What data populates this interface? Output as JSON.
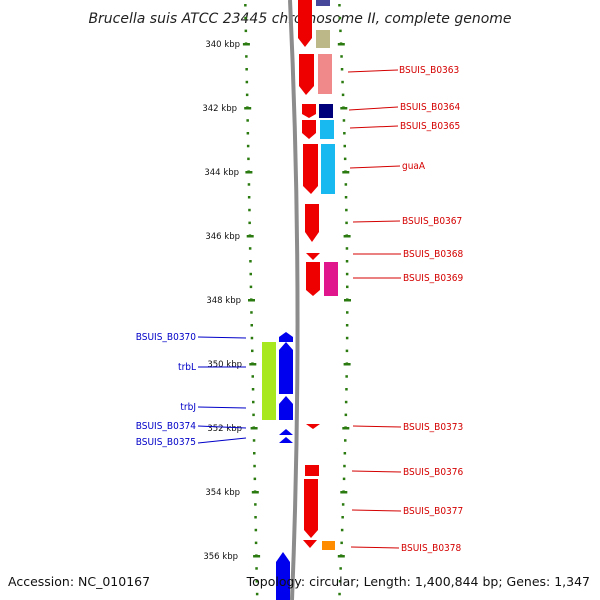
{
  "title": "Brucella suis ATCC 23445 chromosome II, complete genome",
  "footer": {
    "accession": "Accession: NC_010167",
    "stats": "Topology: circular; Length: 1,400,844 bp; Genes: 1,347"
  },
  "colors": {
    "forward": "#ee0000",
    "reverse": "#0000ee",
    "label_forward": "#d40000",
    "label_reverse": "#0000c8",
    "tick": "#2a7a10",
    "backbone": "#8c8c8c"
  },
  "axis": {
    "unit": "kbp",
    "tick_labels": [
      "340 kbp",
      "342 kbp",
      "344 kbp",
      "346 kbp",
      "348 kbp",
      "350 kbp",
      "352 kbp",
      "354 kbp",
      "356 kbp"
    ]
  },
  "genes_forward": [
    {
      "label": "BSUIS_B0363"
    },
    {
      "label": "BSUIS_B0364"
    },
    {
      "label": "BSUIS_B0365"
    },
    {
      "label": "guaA"
    },
    {
      "label": "BSUIS_B0367"
    },
    {
      "label": "BSUIS_B0368"
    },
    {
      "label": "BSUIS_B0369"
    },
    {
      "label": "BSUIS_B0373"
    },
    {
      "label": "BSUIS_B0376"
    },
    {
      "label": "BSUIS_B0377"
    },
    {
      "label": "BSUIS_B0378"
    }
  ],
  "genes_reverse": [
    {
      "label": "BSUIS_B0370"
    },
    {
      "label": "trbL"
    },
    {
      "label": "trbJ"
    },
    {
      "label": "BSUIS_B0374"
    },
    {
      "label": "BSUIS_B0375"
    }
  ]
}
